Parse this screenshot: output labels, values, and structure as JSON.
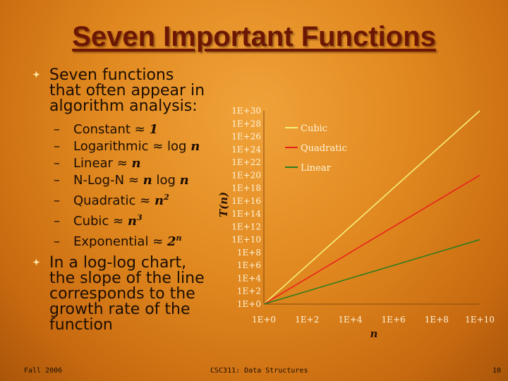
{
  "slide": {
    "title": "Seven Important Functions",
    "intro": [
      "Seven functions",
      "that often appear in",
      "algorithm analysis:"
    ],
    "functions": [
      {
        "name": "Constant",
        "sym": "≈",
        "math": "1",
        "sup": ""
      },
      {
        "name": "Logarithmic",
        "sym": "≈ log",
        "math": "n",
        "sup": ""
      },
      {
        "name": "Linear",
        "sym": "≈",
        "math": "n",
        "sup": ""
      },
      {
        "name": "N-Log-N",
        "sym": "≈",
        "math": "n",
        "after": "log",
        "math2": "n",
        "sup": ""
      },
      {
        "name": "Quadratic",
        "sym": "≈",
        "math": "n",
        "sup": "2"
      },
      {
        "name": "Cubic",
        "sym": "≈",
        "math": "n",
        "sup": "3"
      },
      {
        "name": "Exponential",
        "sym": "≈",
        "math": "2",
        "sup": "n"
      }
    ],
    "dash": "–",
    "note": [
      "In a log-log chart,",
      "the slope of the line",
      "corresponds to the",
      "growth rate of the",
      "function"
    ]
  },
  "footer": {
    "left": "Fall 2006",
    "center": "CSC311: Data Structures",
    "right": "10"
  },
  "colors": {
    "title": "#6b1704",
    "cubic": "#f5ef7a",
    "quadratic": "#e8231b",
    "linear": "#2f7d1e",
    "axis_text": "#fff4d8"
  },
  "chart_data": {
    "type": "line",
    "xscale": "log",
    "yscale": "log",
    "xlabel": "n",
    "ylabel": "T(n)",
    "xlim": [
      1,
      10000000000.0
    ],
    "ylim": [
      1,
      1e+30
    ],
    "x_ticks": [
      "1E+0",
      "1E+2",
      "1E+4",
      "1E+6",
      "1E+8",
      "1E+10"
    ],
    "y_ticks": [
      "1E+0",
      "1E+2",
      "1E+4",
      "1E+6",
      "1E+8",
      "1E+10",
      "1E+12",
      "1E+14",
      "1E+16",
      "1E+18",
      "1E+20",
      "1E+22",
      "1E+24",
      "1E+26",
      "1E+28",
      "1E+30"
    ],
    "legend_position": "top-right",
    "grid": false,
    "series": [
      {
        "name": "Cubic",
        "x": [
          1,
          10000000000.0
        ],
        "y": [
          1,
          1e+30
        ],
        "color": "#f5ef7a"
      },
      {
        "name": "Quadratic",
        "x": [
          1,
          10000000000.0
        ],
        "y": [
          1,
          1e+20
        ],
        "color": "#e8231b"
      },
      {
        "name": "Linear",
        "x": [
          1,
          10000000000.0
        ],
        "y": [
          1,
          10000000000.0
        ],
        "color": "#2f7d1e"
      }
    ]
  }
}
